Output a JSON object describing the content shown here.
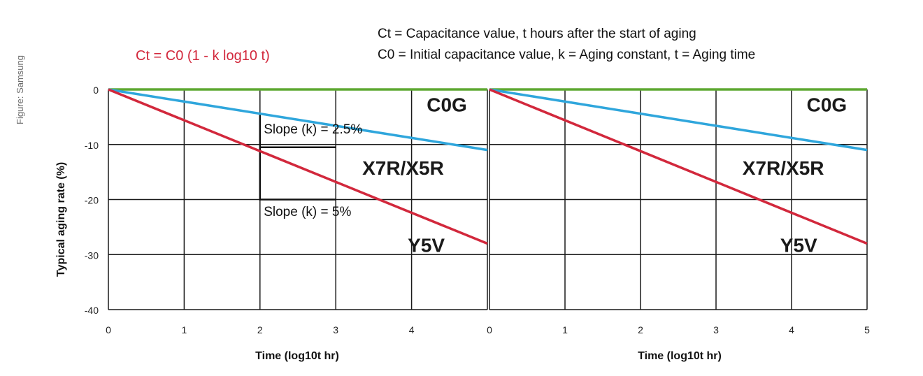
{
  "credit": "Figure: Samsung",
  "formula": {
    "text": "Ct = C0 (1 - k log10 t)",
    "color": "#d2283c"
  },
  "legend": {
    "line1": "Ct = Capacitance value, t hours after the start of aging",
    "line2": "C0 = Initial capacitance value, k = Aging constant, t = Aging time"
  },
  "colors": {
    "c0g": "#5ea832",
    "x7r": "#2fa6dc",
    "y5v": "#d2283c",
    "grid": "#1a1a1a"
  },
  "chart_data": [
    {
      "type": "line",
      "panel": "left",
      "title": "",
      "xlabel": "Time (log10t hr)",
      "ylabel": "Typical aging rate (%)",
      "xlim": [
        0,
        5
      ],
      "ylim": [
        -40,
        0
      ],
      "xticks": [
        0,
        1,
        2,
        3,
        4,
        5
      ],
      "xtick_labels": [
        "0",
        "1",
        "2",
        "3",
        "4",
        ""
      ],
      "yticks": [
        0,
        -10,
        -20,
        -30,
        -40
      ],
      "ytick_labels": [
        "0",
        "-10",
        "-20",
        "-30",
        "-40"
      ],
      "grid": true,
      "series": [
        {
          "name": "C0G",
          "color_key": "c0g",
          "x": [
            0,
            5
          ],
          "y": [
            0,
            0
          ]
        },
        {
          "name": "X7R/X5R",
          "color_key": "x7r",
          "x": [
            0,
            5
          ],
          "y": [
            0,
            -11
          ]
        },
        {
          "name": "Y5V",
          "color_key": "y5v",
          "x": [
            0,
            5
          ],
          "y": [
            0,
            -28
          ]
        }
      ],
      "series_labels": [
        {
          "text": "C0G",
          "x": 4.2,
          "y": -4
        },
        {
          "text": "X7R/X5R",
          "x": 3.35,
          "y": -15.5
        },
        {
          "text": "Y5V",
          "x": 3.95,
          "y": -29.5
        }
      ],
      "annotations": [
        {
          "text": "Slope (k) = 2.5%",
          "x": 2.05,
          "y": -8
        },
        {
          "text": "Slope (k) = 5%",
          "x": 2.05,
          "y": -23
        }
      ],
      "slope_guides": [
        {
          "from": [
            2,
            -4.5
          ],
          "corner": [
            2,
            -10.5
          ],
          "to": [
            3,
            -10.5
          ]
        },
        {
          "from": [
            2,
            -10.5
          ],
          "corner": [
            2,
            -20
          ],
          "to": [
            3,
            -20
          ]
        }
      ]
    },
    {
      "type": "line",
      "panel": "right",
      "title": "",
      "xlabel": "Time (log10t hr)",
      "ylabel": "",
      "xlim": [
        0,
        5
      ],
      "ylim": [
        -40,
        0
      ],
      "xticks": [
        0,
        1,
        2,
        3,
        4,
        5
      ],
      "xtick_labels": [
        "0",
        "1",
        "2",
        "3",
        "4",
        "5"
      ],
      "yticks": [
        0,
        -10,
        -20,
        -30,
        -40
      ],
      "ytick_labels": [],
      "grid": true,
      "series": [
        {
          "name": "C0G",
          "color_key": "c0g",
          "x": [
            0,
            5
          ],
          "y": [
            0,
            0
          ]
        },
        {
          "name": "X7R/X5R",
          "color_key": "x7r",
          "x": [
            0,
            5
          ],
          "y": [
            0,
            -11
          ]
        },
        {
          "name": "Y5V",
          "color_key": "y5v",
          "x": [
            0,
            5
          ],
          "y": [
            0,
            -28
          ]
        }
      ],
      "series_labels": [
        {
          "text": "C0G",
          "x": 4.2,
          "y": -4
        },
        {
          "text": "X7R/X5R",
          "x": 3.35,
          "y": -15.5
        },
        {
          "text": "Y5V",
          "x": 3.85,
          "y": -29.5
        }
      ],
      "annotations": [],
      "slope_guides": []
    }
  ]
}
